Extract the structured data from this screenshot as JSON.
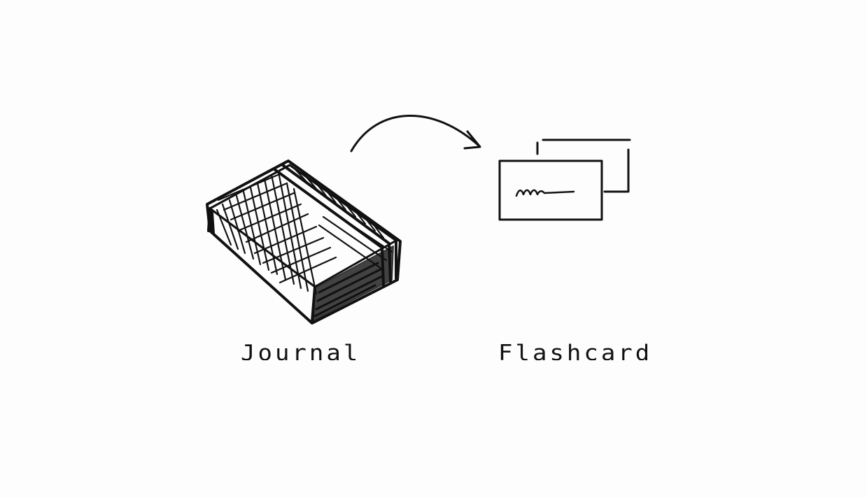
{
  "colors": {
    "ink": "#111111",
    "paper": "#fdfdfd"
  },
  "items": [
    {
      "label": "Journal",
      "icon": "journal-icon"
    },
    {
      "label": "Flashcard",
      "icon": "flashcard-icon"
    }
  ],
  "connector": {
    "icon": "curved-arrow-icon"
  }
}
